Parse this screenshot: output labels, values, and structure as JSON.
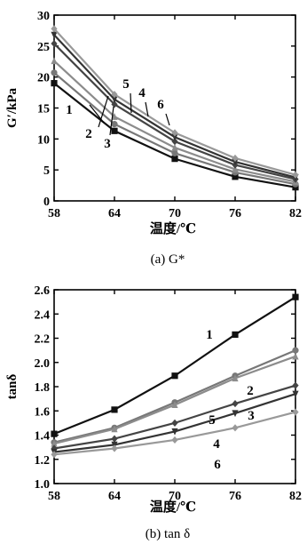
{
  "chart_data": [
    {
      "type": "line",
      "ylabel": "G′/kPa",
      "xlabel": "温度/℃",
      "caption": "(a) G*",
      "x": [
        58,
        64,
        70,
        76,
        82
      ],
      "xticks": [
        "58",
        "64",
        "70",
        "76",
        "82"
      ],
      "yticks": [
        "0",
        "5",
        "10",
        "15",
        "20",
        "25",
        "30"
      ],
      "xlim": [
        58,
        82
      ],
      "ylim": [
        0,
        30
      ],
      "grid": false,
      "series": [
        {
          "name": "1",
          "values": [
            19.0,
            11.3,
            6.8,
            3.9,
            2.2
          ],
          "color": "#111111",
          "marker": "square"
        },
        {
          "name": "2",
          "values": [
            20.7,
            12.4,
            7.7,
            4.6,
            2.7
          ],
          "color": "#777777",
          "marker": "circle"
        },
        {
          "name": "3",
          "values": [
            22.6,
            13.6,
            8.6,
            5.1,
            3.1
          ],
          "color": "#8c8c8c",
          "marker": "triangle"
        },
        {
          "name": "4",
          "values": [
            25.4,
            15.6,
            9.6,
            5.8,
            3.5
          ],
          "color": "#444444",
          "marker": "diamond"
        },
        {
          "name": "5",
          "values": [
            26.8,
            16.4,
            10.3,
            6.3,
            3.8
          ],
          "color": "#333333",
          "marker": "triangle-down"
        },
        {
          "name": "6",
          "values": [
            27.8,
            17.2,
            11.0,
            6.9,
            4.2
          ],
          "color": "#999999",
          "marker": "diamond"
        }
      ],
      "annotations": [
        "1",
        "2",
        "3",
        "4",
        "5",
        "6"
      ]
    },
    {
      "type": "line",
      "ylabel": "tanδ",
      "xlabel": "温度/℃",
      "caption": "(b) tan δ",
      "x": [
        58,
        64,
        70,
        76,
        82
      ],
      "xticks": [
        "58",
        "64",
        "70",
        "76",
        "82"
      ],
      "yticks": [
        "1.0",
        "1.2",
        "1.4",
        "1.6",
        "1.8",
        "2.0",
        "2.2",
        "2.4",
        "2.6"
      ],
      "xlim": [
        58,
        82
      ],
      "ylim": [
        1.0,
        2.6
      ],
      "grid": false,
      "series": [
        {
          "name": "1",
          "values": [
            1.41,
            1.61,
            1.89,
            2.23,
            2.54
          ],
          "color": "#111111",
          "marker": "square"
        },
        {
          "name": "2",
          "values": [
            1.34,
            1.46,
            1.67,
            1.89,
            2.1
          ],
          "color": "#777777",
          "marker": "circle"
        },
        {
          "name": "3",
          "values": [
            1.33,
            1.45,
            1.65,
            1.87,
            2.05
          ],
          "color": "#8c8c8c",
          "marker": "triangle"
        },
        {
          "name": "5",
          "values": [
            1.29,
            1.37,
            1.5,
            1.66,
            1.81
          ],
          "color": "#444444",
          "marker": "diamond"
        },
        {
          "name": "4",
          "values": [
            1.26,
            1.32,
            1.43,
            1.58,
            1.74
          ],
          "color": "#333333",
          "marker": "triangle-down"
        },
        {
          "name": "6",
          "values": [
            1.24,
            1.29,
            1.36,
            1.46,
            1.59
          ],
          "color": "#999999",
          "marker": "diamond"
        }
      ],
      "annotations": [
        "1",
        "2",
        "3",
        "4",
        "5",
        "6"
      ]
    }
  ]
}
